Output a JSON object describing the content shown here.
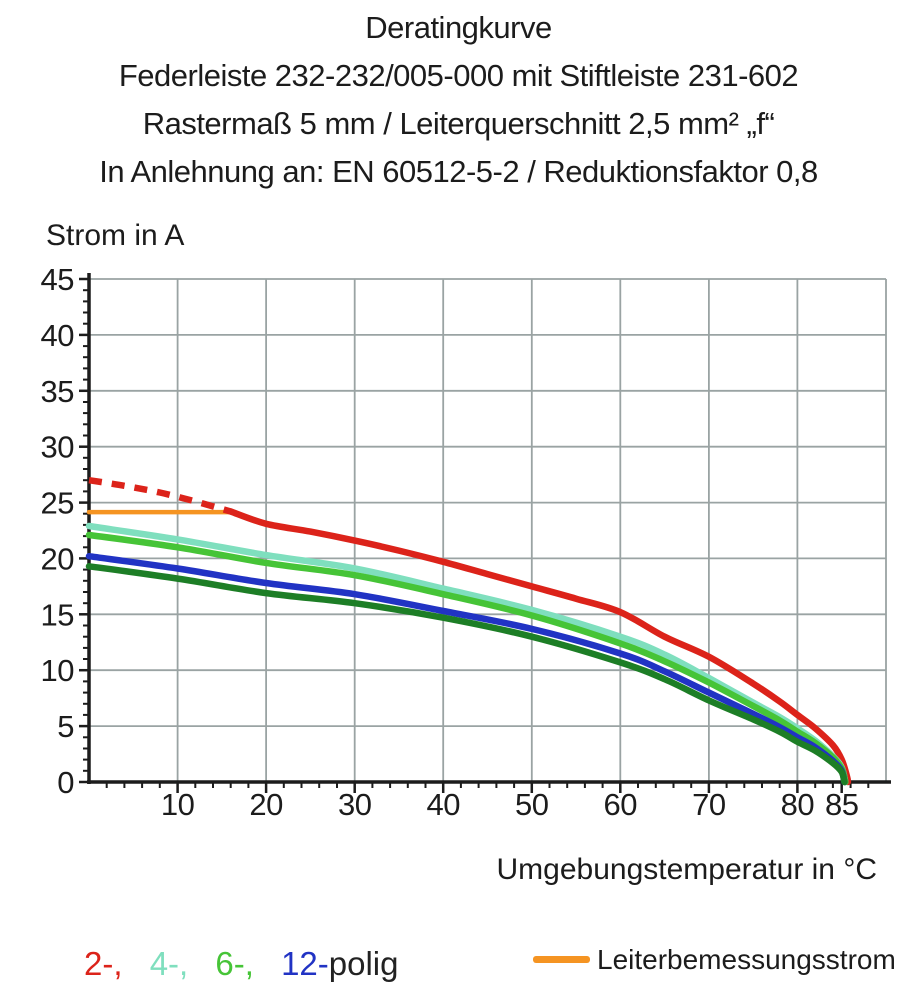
{
  "title": {
    "lines": [
      "Deratingkurve",
      "Federleiste 232-232/005-000 mit Stiftleiste 231-602",
      "Rastermaß 5 mm / Leiterquerschnitt 2,5 mm² „f“",
      "In Anlehnung an: EN 60512-5-2 / Reduktionsfaktor 0,8"
    ]
  },
  "chart_data": {
    "type": "line",
    "title": "Deratingkurve",
    "xlabel": "Umgebungstemperatur in °C",
    "ylabel": "Strom in A",
    "xlim": [
      0,
      90
    ],
    "ylim": [
      0,
      45
    ],
    "x_major_ticks": [
      10,
      20,
      30,
      40,
      50,
      60,
      70,
      80,
      85
    ],
    "x_tick_labels": [
      "10",
      "20",
      "30",
      "40",
      "50",
      "60",
      "70",
      "80",
      "85"
    ],
    "y_major_ticks": [
      0,
      5,
      10,
      15,
      20,
      25,
      30,
      35,
      40,
      45
    ],
    "x_minor_step": 2,
    "y_minor_step": 1,
    "grid": true,
    "grid_color": "#9aa3a3",
    "axis_color": "#1c1c1c",
    "legend_position": "bottom",
    "rated_current_A": 24,
    "series": [
      {
        "id": "leiterbemessungsstrom",
        "name": "Leiterbemessungsstrom",
        "color": "#f59422",
        "style": "solid",
        "width": 4.5,
        "points": [
          [
            0,
            24.15
          ],
          [
            16.3,
            24.15
          ]
        ]
      },
      {
        "id": "2-polig-dashed",
        "name": "2-polig (gestrichelt)",
        "color": "#dc231a",
        "style": "dashed",
        "width": 6.5,
        "points": [
          [
            0,
            27.0
          ],
          [
            4,
            26.5
          ],
          [
            8,
            25.9
          ],
          [
            12,
            25.1
          ],
          [
            16,
            24.2
          ]
        ]
      },
      {
        "id": "2-polig",
        "name": "2-polig",
        "color": "#dc231a",
        "style": "solid",
        "width": 6.5,
        "points": [
          [
            16,
            24.2
          ],
          [
            20,
            23.1
          ],
          [
            25,
            22.4
          ],
          [
            30,
            21.6
          ],
          [
            35,
            20.7
          ],
          [
            40,
            19.7
          ],
          [
            45,
            18.6
          ],
          [
            50,
            17.5
          ],
          [
            55,
            16.4
          ],
          [
            60,
            15.2
          ],
          [
            65,
            13.0
          ],
          [
            70,
            11.2
          ],
          [
            75,
            8.8
          ],
          [
            78,
            7.2
          ],
          [
            80,
            6.0
          ],
          [
            82,
            4.8
          ],
          [
            84,
            3.3
          ],
          [
            85,
            2.0
          ],
          [
            85.6,
            0.5
          ],
          [
            85.7,
            0
          ]
        ]
      },
      {
        "id": "4-polig",
        "name": "4-polig",
        "color": "#7fdfbe",
        "style": "solid",
        "width": 6.5,
        "points": [
          [
            0,
            22.9
          ],
          [
            10,
            21.7
          ],
          [
            20,
            20.3
          ],
          [
            30,
            19.1
          ],
          [
            40,
            17.3
          ],
          [
            50,
            15.4
          ],
          [
            60,
            13.0
          ],
          [
            65,
            11.4
          ],
          [
            70,
            9.3
          ],
          [
            75,
            7.1
          ],
          [
            78,
            5.8
          ],
          [
            80,
            4.8
          ],
          [
            82,
            3.7
          ],
          [
            84,
            2.3
          ],
          [
            85,
            1.3
          ],
          [
            85.4,
            0
          ]
        ]
      },
      {
        "id": "6-polig",
        "name": "6-polig",
        "color": "#46c437",
        "style": "solid",
        "width": 6.5,
        "points": [
          [
            0,
            22.1
          ],
          [
            10,
            21.0
          ],
          [
            20,
            19.6
          ],
          [
            30,
            18.5
          ],
          [
            40,
            16.8
          ],
          [
            50,
            14.9
          ],
          [
            60,
            12.4
          ],
          [
            65,
            10.8
          ],
          [
            70,
            8.9
          ],
          [
            75,
            6.8
          ],
          [
            78,
            5.5
          ],
          [
            80,
            4.5
          ],
          [
            82,
            3.5
          ],
          [
            84,
            2.2
          ],
          [
            85,
            1.2
          ],
          [
            85.4,
            0
          ]
        ]
      },
      {
        "id": "12-polig",
        "name": "12-polig",
        "color": "#2133c4",
        "style": "solid",
        "width": 6.5,
        "points": [
          [
            0,
            20.2
          ],
          [
            10,
            19.1
          ],
          [
            20,
            17.8
          ],
          [
            30,
            16.8
          ],
          [
            40,
            15.3
          ],
          [
            50,
            13.7
          ],
          [
            60,
            11.5
          ],
          [
            65,
            9.9
          ],
          [
            70,
            8.0
          ],
          [
            75,
            6.1
          ],
          [
            78,
            4.9
          ],
          [
            80,
            4.0
          ],
          [
            82,
            3.1
          ],
          [
            84,
            1.9
          ],
          [
            85,
            1.0
          ],
          [
            85.3,
            0
          ]
        ]
      },
      {
        "id": "dunkelgruene-kurve",
        "name": "",
        "color": "#1d7e26",
        "style": "solid",
        "width": 6.5,
        "points": [
          [
            0,
            19.3
          ],
          [
            10,
            18.2
          ],
          [
            20,
            16.9
          ],
          [
            30,
            16.0
          ],
          [
            40,
            14.7
          ],
          [
            50,
            13.0
          ],
          [
            60,
            10.7
          ],
          [
            65,
            9.2
          ],
          [
            70,
            7.3
          ],
          [
            75,
            5.6
          ],
          [
            78,
            4.5
          ],
          [
            80,
            3.6
          ],
          [
            82,
            2.8
          ],
          [
            84,
            1.7
          ],
          [
            85,
            0.9
          ],
          [
            85.3,
            0
          ]
        ]
      }
    ]
  },
  "axis_titles": {
    "y": "Strom in A",
    "x": "Umgebungstemperatur in °C"
  },
  "legend": {
    "pole_items": [
      {
        "label": "2-,",
        "color": "#dc231a"
      },
      {
        "label": "4-,",
        "color": "#7fdfbe"
      },
      {
        "label": "6-,",
        "color": "#46c437"
      },
      {
        "label": "12-",
        "color": "#2133c4"
      }
    ],
    "suffix": "polig",
    "rated_current": {
      "label": "Leiterbemessungsstrom",
      "color": "#f59422"
    }
  }
}
